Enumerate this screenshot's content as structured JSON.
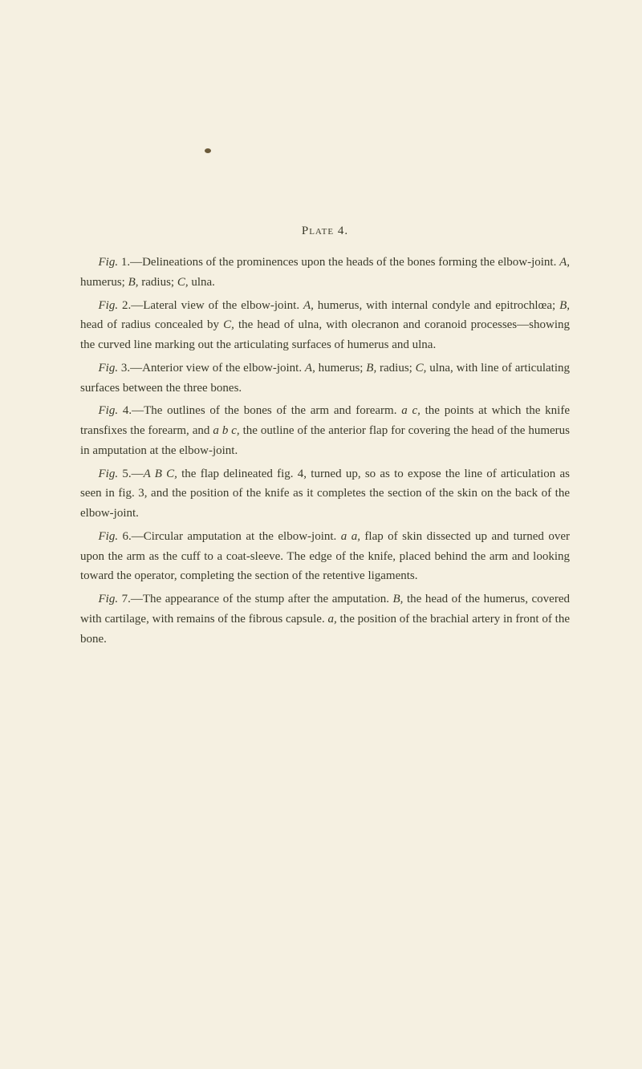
{
  "plate_heading": "Plate 4.",
  "paragraphs": {
    "p1": {
      "fig": "Fig.",
      "num": " 1.—Delineations of the prominences upon the heads of the bones forming the elbow-joint. ",
      "a": "A,",
      "t1": " humerus; ",
      "b": "B,",
      "t2": " radius; ",
      "c": "C,",
      "t3": " ulna."
    },
    "p2": {
      "fig": "Fig.",
      "num": " 2.—Lateral view of the elbow-joint. ",
      "a": "A,",
      "t1": " humerus, with internal condyle and epitrochlœa; ",
      "b": "B,",
      "t2": " head of radius concealed by ",
      "c": "C,",
      "t3": " the head of ulna, with olecranon and coranoid processes—showing the curved line marking out the articulating surfaces of humerus and ulna."
    },
    "p3": {
      "fig": "Fig.",
      "num": " 3.—Anterior view of the elbow-joint. ",
      "a": "A,",
      "t1": " humerus; ",
      "b": "B,",
      "t2": " radius; ",
      "c": "C,",
      "t3": " ulna, with line of articulating surfaces between the three bones."
    },
    "p4": {
      "fig": "Fig.",
      "num": " 4.—The outlines of the bones of the arm and forearm. ",
      "v1": "a c,",
      "t1": " the points at which the knife transfixes the forearm, and ",
      "v2": "a b c,",
      "t2": " the outline of the anterior flap for covering the head of the humerus in amputation at the elbow-joint."
    },
    "p5": {
      "fig": "Fig.",
      "num": " 5.—",
      "v1": "A B C,",
      "t1": " the flap delineated fig. 4, turned up, so as to expose the line of articulation as seen in fig. 3, and the position of the knife as it completes the section of the skin on the back of the elbow-joint."
    },
    "p6": {
      "fig": "Fig.",
      "num": " 6.—Circular amputation at the elbow-joint. ",
      "v1": "a a,",
      "t1": " flap of skin dissected up and turned over upon the arm as the cuff to a coat-sleeve. The edge of the knife, placed behind the arm and looking toward the operator, completing the section of the retentive ligaments."
    },
    "p7": {
      "fig": "Fig.",
      "num": " 7.—The appearance of the stump after the amputation. ",
      "b": "B,",
      "t1": " the head of the humerus, covered with cartilage, with remains of the fibrous capsule. ",
      "v1": "a,",
      "t2": " the position of the brachial artery in front of the bone."
    }
  },
  "colors": {
    "background": "#f5f0e1",
    "text": "#3a3a2a",
    "mark": "#6b5a3a"
  }
}
